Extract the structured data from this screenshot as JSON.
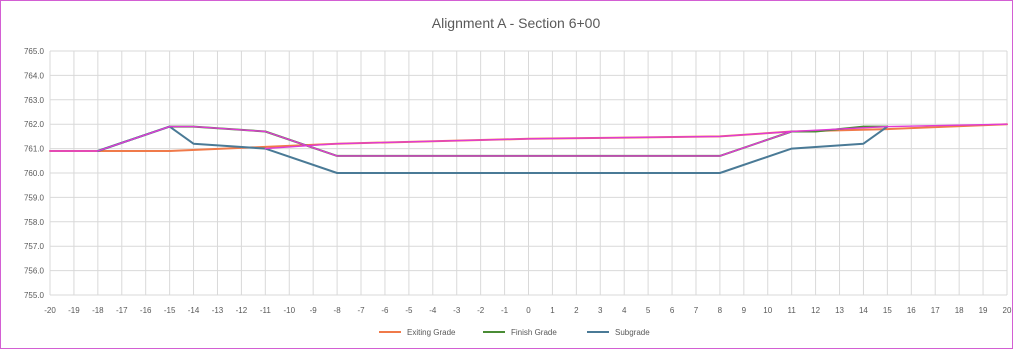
{
  "chart_data": {
    "type": "line",
    "title": "Alignment A - Section 6+00",
    "xlabel": "",
    "ylabel": "",
    "xlim": [
      -20,
      20
    ],
    "ylim": [
      755.0,
      765.0
    ],
    "x_ticks": [
      "-20",
      "-19",
      "-18",
      "-17",
      "-16",
      "-15",
      "-14",
      "-13",
      "-12",
      "-11",
      "-10",
      "-9",
      "-8",
      "-7",
      "-6",
      "-5",
      "-4",
      "-3",
      "-2",
      "-1",
      "0",
      "1",
      "2",
      "3",
      "4",
      "5",
      "6",
      "7",
      "8",
      "9",
      "10",
      "11",
      "12",
      "13",
      "14",
      "15",
      "16",
      "17",
      "18",
      "19",
      "20"
    ],
    "y_ticks": [
      "765.0",
      "764.0",
      "763.0",
      "762.0",
      "761.0",
      "760.0",
      "759.0",
      "758.0",
      "757.0",
      "756.0",
      "755.0"
    ],
    "grid": true,
    "legend_position": "bottom",
    "series": [
      {
        "name": "Exiting Grade",
        "color": "#f07a4a",
        "points": [
          [
            -20,
            760.9
          ],
          [
            -15,
            760.9
          ],
          [
            -8,
            761.2
          ],
          [
            0,
            761.4
          ],
          [
            8,
            761.5
          ],
          [
            11,
            761.7
          ],
          [
            15,
            761.8
          ],
          [
            20,
            762.0
          ]
        ]
      },
      {
        "name": "Finish Grade",
        "color": "#4a8c35",
        "points": [
          [
            -18,
            760.9
          ],
          [
            -15,
            761.9
          ],
          [
            -14,
            761.9
          ],
          [
            -11,
            761.7
          ],
          [
            -8,
            760.7
          ],
          [
            8,
            760.7
          ],
          [
            11,
            761.7
          ],
          [
            12,
            761.7
          ],
          [
            14,
            761.9
          ],
          [
            15,
            761.9
          ]
        ]
      },
      {
        "name": "Subgrade",
        "color": "#4a7a96",
        "points": [
          [
            -18,
            760.9
          ],
          [
            -15,
            761.9
          ],
          [
            -14,
            761.2
          ],
          [
            -11,
            761.0
          ],
          [
            -8,
            760.0
          ],
          [
            8,
            760.0
          ],
          [
            11,
            761.0
          ],
          [
            14,
            761.2
          ],
          [
            15,
            761.9
          ]
        ]
      },
      {
        "name": "",
        "color": "#e03ad6",
        "points": [
          [
            -20,
            760.9
          ],
          [
            -18,
            760.9
          ],
          [
            -15,
            761.9
          ],
          [
            -14,
            761.9
          ],
          [
            -11,
            761.7
          ],
          [
            -8,
            760.7
          ],
          [
            8,
            760.7
          ],
          [
            11,
            761.7
          ],
          [
            15,
            761.9
          ],
          [
            20,
            762.0
          ]
        ]
      },
      {
        "name": "",
        "color": "#e03ad6",
        "points": [
          [
            -11,
            761.0
          ],
          [
            -8,
            761.2
          ],
          [
            0,
            761.4
          ],
          [
            8,
            761.5
          ],
          [
            11,
            761.7
          ]
        ]
      }
    ]
  }
}
